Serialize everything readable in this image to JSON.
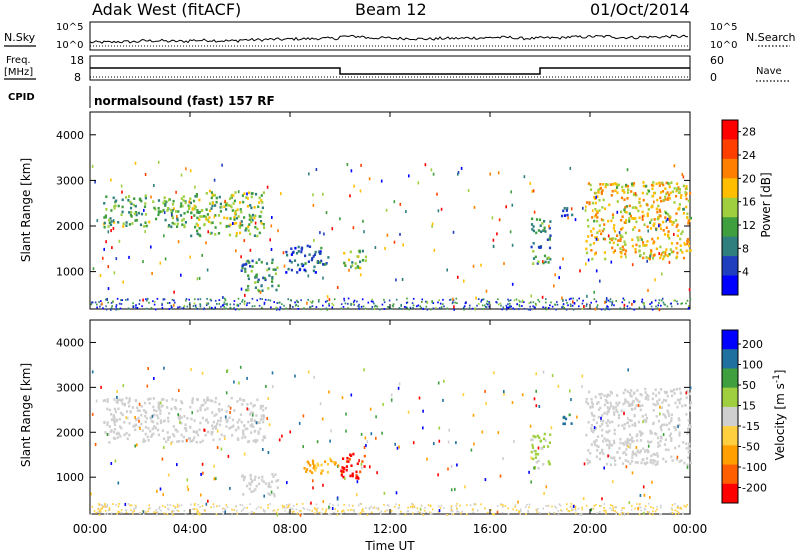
{
  "header": {
    "station": "Adak West (fitACF)",
    "beam": "Beam 12",
    "date": "01/Oct/2014"
  },
  "labels": {
    "nsky": "N.Sky",
    "nsearch": "N.Search",
    "freq": "Freq.",
    "freq_unit": "[MHz]",
    "nave": "Nave",
    "cpid": "CPID",
    "cpid_value": "normalsound (fast) 157 RF",
    "ticks_noise_left": [
      "10^5",
      "10^0"
    ],
    "ticks_noise_right": [
      "10^5",
      "10^0"
    ],
    "ticks_freq": [
      "18",
      "8"
    ],
    "ticks_nave": [
      "60",
      "0"
    ]
  },
  "colors": {
    "power_scale": [
      "#0000ff",
      "#1f3fbf",
      "#2f7f7f",
      "#3f9f3f",
      "#9fcf3f",
      "#ffbf00",
      "#ff7f00",
      "#ff3f00",
      "#ff0000"
    ],
    "velocity_scale": [
      "#ff0000",
      "#ff5f00",
      "#ff9f00",
      "#ffcf3f",
      "#cfcfcf",
      "#9fcf3f",
      "#3f9f3f",
      "#1f6f9f",
      "#0000ff"
    ]
  },
  "chart_data": [
    {
      "type": "line",
      "name": "noise-panel",
      "series": [
        {
          "name": "N.Sky",
          "values": [
            1.2,
            1.3,
            1.5,
            1.4,
            1.6,
            1.5,
            1.7,
            1.8,
            1.9,
            2.0,
            2.4,
            2.1,
            2.0,
            1.9,
            2.0,
            2.1,
            2.2,
            2.0,
            2.1,
            2.3,
            2.4,
            2.2,
            2.3,
            2.4,
            2.3
          ]
        },
        {
          "name": "N.Search",
          "values": [
            0.8,
            0.8,
            0.8,
            0.8,
            0.8,
            0.8,
            0.8,
            0.8,
            0.8,
            0.8,
            0.8,
            0.8,
            0.8,
            0.8,
            0.8,
            0.8,
            0.8,
            0.8,
            0.8,
            0.8,
            0.8,
            0.8,
            0.8,
            0.8,
            0.8
          ]
        }
      ]
    },
    {
      "type": "line",
      "name": "freq-nave-panel",
      "x": [
        0,
        10,
        10,
        18,
        18,
        24
      ],
      "series": [
        {
          "name": "Freq.",
          "values": [
            13,
            13,
            10.5,
            10.5,
            13,
            13
          ]
        }
      ],
      "ylim": [
        8,
        18
      ]
    },
    {
      "type": "heatmap",
      "name": "power",
      "ylabel": "Slant Range [km]",
      "colorbar_label": "Power [dB]",
      "colorbar_ticks": [
        4,
        8,
        12,
        16,
        20,
        24,
        28
      ],
      "clim": [
        0,
        30
      ],
      "xlim": [
        0,
        24
      ],
      "ylim": [
        180,
        4500
      ],
      "yticks": [
        1000,
        2000,
        3000,
        4000
      ],
      "regions": [
        {
          "hours": [
            0.5,
            4.0
          ],
          "range": [
            2000,
            2700
          ],
          "power": 12
        },
        {
          "hours": [
            4.0,
            7.0
          ],
          "range": [
            1800,
            2800
          ],
          "power": 14
        },
        {
          "hours": [
            6.0,
            7.5
          ],
          "range": [
            600,
            1300
          ],
          "power": 10
        },
        {
          "hours": [
            7.8,
            9.5
          ],
          "range": [
            1000,
            1600
          ],
          "power": 6
        },
        {
          "hours": [
            10.0,
            11.0
          ],
          "range": [
            1100,
            1500
          ],
          "power": 14
        },
        {
          "hours": [
            17.6,
            18.4
          ],
          "range": [
            1200,
            2200
          ],
          "power": 10
        },
        {
          "hours": [
            18.8,
            19.3
          ],
          "range": [
            2200,
            2500
          ],
          "power": 6
        },
        {
          "hours": [
            19.8,
            24.0
          ],
          "range": [
            1300,
            3000
          ],
          "power": 18
        }
      ]
    },
    {
      "type": "heatmap",
      "name": "velocity",
      "ylabel": "Slant Range [km]",
      "colorbar_label": "Velocity [m s^-1]",
      "colorbar_ticks": [
        200,
        100,
        50,
        15,
        -15,
        -50,
        -100,
        -200
      ],
      "clim": [
        -250,
        250
      ],
      "xlim": [
        0,
        24
      ],
      "ylim": [
        180,
        4500
      ],
      "yticks": [
        1000,
        2000,
        3000,
        4000
      ],
      "xticks": [
        "00:00",
        "04:00",
        "08:00",
        "12:00",
        "16:00",
        "20:00",
        "00:00"
      ],
      "xlabel": "Time UT",
      "regions": [
        {
          "hours": [
            0.5,
            7.0
          ],
          "range": [
            1800,
            2800
          ],
          "velocity": 0
        },
        {
          "hours": [
            6.0,
            7.5
          ],
          "range": [
            600,
            1100
          ],
          "velocity": 0
        },
        {
          "hours": [
            8.5,
            9.8
          ],
          "range": [
            1100,
            1500
          ],
          "velocity": -90
        },
        {
          "hours": [
            10.0,
            11.0
          ],
          "range": [
            1000,
            1600
          ],
          "velocity": -200
        },
        {
          "hours": [
            17.6,
            18.4
          ],
          "range": [
            1200,
            2000
          ],
          "velocity": 30
        },
        {
          "hours": [
            18.8,
            19.3
          ],
          "range": [
            2200,
            2500
          ],
          "velocity": 150
        },
        {
          "hours": [
            19.8,
            24.0
          ],
          "range": [
            1300,
            3000
          ],
          "velocity": 0
        }
      ]
    }
  ]
}
